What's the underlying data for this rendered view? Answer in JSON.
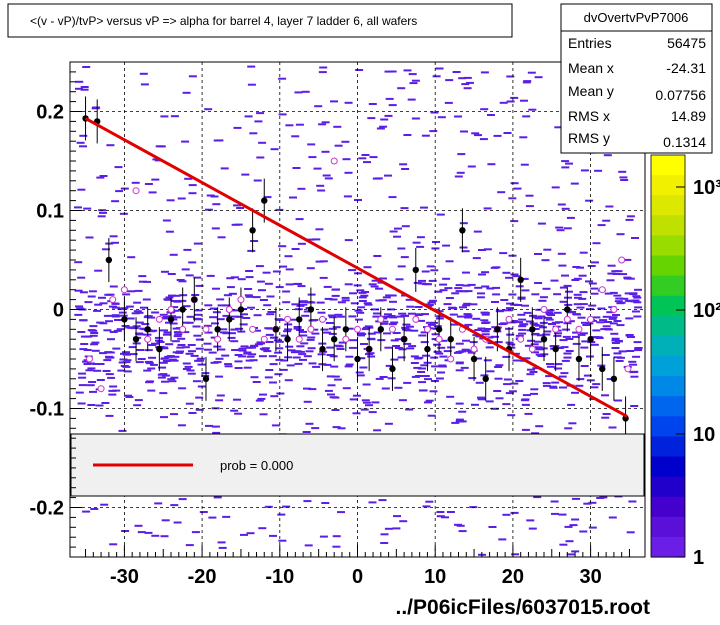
{
  "title": "<(v - vP)/tvP> versus   vP => alpha for barrel 4, layer 7 ladder 6, all wafers",
  "footer": "../P06icFiles/6037015.root",
  "stats": {
    "name": "dvOvertvPvP7006",
    "rows": [
      {
        "label": "Entries",
        "value": "56475"
      },
      {
        "label": "Mean x",
        "value": "-24.31"
      },
      {
        "label": "Mean y",
        "value": "0.07756"
      },
      {
        "label": "RMS x",
        "value": "14.89"
      },
      {
        "label": "RMS y",
        "value": "0.1314"
      }
    ]
  },
  "legend": {
    "entry": "prob = 0.000",
    "line_color": "#e00000"
  },
  "colors": {
    "fit_line": "#e00000",
    "profile_points": "#000000",
    "open_markers": "#cc33cc",
    "cells": "#5a1ee6"
  },
  "colorbar": {
    "ticks": [
      "1",
      "10",
      "10²",
      "10³"
    ]
  },
  "chart_data": {
    "type": "scatter",
    "xlim": [
      -37,
      37
    ],
    "ylim": [
      -0.25,
      0.25
    ],
    "x_ticks": [
      -30,
      -20,
      -10,
      0,
      10,
      20,
      30
    ],
    "y_ticks": [
      -0.2,
      -0.1,
      0,
      0.1,
      0.2
    ],
    "y_tick_labels": [
      "-0.2",
      "-0.1",
      "0",
      "0.1",
      "0.2"
    ],
    "grid": true,
    "fit_line": {
      "x": [
        -35.0,
        34.7
      ],
      "y": [
        0.193,
        -0.108
      ]
    },
    "series": [
      {
        "x": [
          -35.0,
          -33.5,
          -32.0,
          -30.0,
          -28.5,
          -27.0,
          -25.5,
          -24.0,
          -22.5,
          -21.0,
          -19.5,
          -18.0,
          -16.5,
          -15.0,
          -13.5,
          -12.0,
          -10.5,
          -9.0,
          -7.5,
          -6.0,
          -4.5,
          -3.0,
          -1.5,
          0.0,
          1.5,
          3.0,
          4.5,
          6.0,
          7.5,
          9.0,
          10.5,
          12.0,
          13.5,
          15.0,
          16.5,
          18.0,
          19.5,
          21.0,
          22.5,
          24.0,
          25.5,
          27.0,
          28.5,
          30.0,
          31.5,
          33.0,
          34.5
        ],
        "y": [
          0.193,
          0.19,
          0.05,
          -0.01,
          -0.03,
          -0.02,
          -0.04,
          -0.01,
          0.0,
          0.01,
          -0.07,
          -0.02,
          -0.01,
          0.0,
          0.08,
          0.11,
          -0.02,
          -0.03,
          -0.01,
          0.0,
          -0.04,
          -0.03,
          -0.02,
          -0.05,
          -0.04,
          -0.02,
          -0.06,
          -0.03,
          0.04,
          -0.04,
          -0.02,
          -0.03,
          0.08,
          -0.05,
          -0.07,
          -0.02,
          -0.04,
          0.03,
          -0.02,
          -0.03,
          -0.04,
          0.0,
          -0.05,
          -0.03,
          -0.06,
          -0.07,
          -0.11
        ]
      },
      {
        "x": [
          -34.5,
          -33.0,
          -31.5,
          -30.0,
          -28.5,
          -27.0,
          -25.5,
          -24.0,
          -22.5,
          -21.0,
          -19.5,
          -18.0,
          -16.5,
          -15.0,
          -13.5,
          -12.0,
          -10.5,
          -9.0,
          -7.5,
          -6.0,
          -4.5,
          -3.0,
          -1.5,
          0.0,
          1.5,
          3.0,
          4.5,
          6.0,
          7.5,
          9.0,
          10.5,
          12.0,
          13.5,
          15.0,
          16.5,
          18.0,
          19.5,
          21.0,
          22.5,
          24.0,
          25.5,
          27.0,
          28.5,
          30.0,
          31.5,
          33.0,
          34.0,
          34.8
        ],
        "y": [
          -0.05,
          -0.08,
          0.01,
          0.02,
          0.12,
          -0.03,
          -0.01,
          0.0,
          -0.02,
          0.01,
          -0.02,
          -0.03,
          0.0,
          0.01,
          -0.02,
          -0.03,
          -0.02,
          -0.01,
          -0.03,
          -0.02,
          -0.01,
          0.15,
          -0.03,
          -0.02,
          -0.04,
          -0.01,
          -0.02,
          -0.03,
          -0.01,
          -0.02,
          -0.03,
          -0.05,
          -0.02,
          -0.04,
          -0.03,
          -0.02,
          -0.01,
          -0.03,
          -0.04,
          0.0,
          -0.02,
          -0.01,
          -0.02,
          -0.01,
          0.02,
          0.0,
          0.05,
          -0.06
        ]
      }
    ]
  }
}
